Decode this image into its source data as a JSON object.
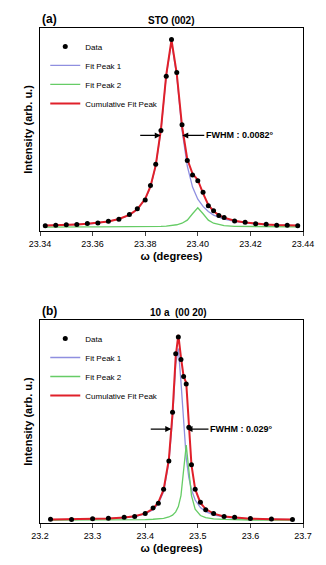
{
  "chart_data": [
    {
      "type": "scatter",
      "panel": "(a)",
      "peak_label": {
        "text": "STO (002)",
        "x": 23.39
      },
      "x_label": "ω (degrees)",
      "y_label": "Intensity (arb. u.)",
      "x": [
        23.342,
        23.346,
        23.35,
        23.354,
        23.358,
        23.362,
        23.366,
        23.37,
        23.374,
        23.377,
        23.38,
        23.382,
        23.384,
        23.386,
        23.388,
        23.39,
        23.392,
        23.394,
        23.396,
        23.398,
        23.4,
        23.402,
        23.404,
        23.406,
        23.408,
        23.41,
        23.414,
        23.418,
        23.422,
        23.426,
        23.43,
        23.434,
        23.438
      ],
      "series": [
        {
          "name": "Data",
          "color": "#000000",
          "marker": "circle",
          "values": [
            0.027,
            0.03,
            0.032,
            0.033,
            0.038,
            0.041,
            0.05,
            0.06,
            0.085,
            0.115,
            0.16,
            0.235,
            0.345,
            0.52,
            0.8,
            0.99,
            0.82,
            0.55,
            0.365,
            0.29,
            0.26,
            0.2,
            0.13,
            0.105,
            0.08,
            0.07,
            0.052,
            0.045,
            0.037,
            0.035,
            0.03,
            0.03,
            0.027
          ]
        },
        {
          "name": "Fit Peak 1",
          "color": "#8f8fe0",
          "line_style": "solid",
          "values": [
            0.027,
            0.029,
            0.031,
            0.033,
            0.036,
            0.041,
            0.049,
            0.061,
            0.082,
            0.111,
            0.164,
            0.227,
            0.336,
            0.523,
            0.802,
            0.98,
            0.802,
            0.523,
            0.336,
            0.227,
            0.164,
            0.127,
            0.101,
            0.082,
            0.07,
            0.061,
            0.049,
            0.041,
            0.036,
            0.033,
            0.031,
            0.029,
            0.027
          ]
        },
        {
          "name": "Fit Peak 2",
          "color": "#66cc66",
          "line_style": "solid",
          "values": [
            0.02,
            0.021,
            0.021,
            0.021,
            0.021,
            0.021,
            0.021,
            0.021,
            0.021,
            0.022,
            0.022,
            0.023,
            0.023,
            0.024,
            0.025,
            0.028,
            0.032,
            0.04,
            0.056,
            0.089,
            0.12,
            0.089,
            0.056,
            0.04,
            0.032,
            0.028,
            0.024,
            0.023,
            0.022,
            0.021,
            0.021,
            0.021,
            0.021
          ]
        },
        {
          "name": "Cumulative Fit Peak",
          "color": "#e0202a",
          "line_style": "solid",
          "values": [
            0.028,
            0.029,
            0.031,
            0.034,
            0.037,
            0.042,
            0.049,
            0.062,
            0.083,
            0.112,
            0.166,
            0.23,
            0.339,
            0.527,
            0.808,
            0.988,
            0.814,
            0.543,
            0.372,
            0.296,
            0.264,
            0.194,
            0.135,
            0.102,
            0.082,
            0.069,
            0.053,
            0.044,
            0.038,
            0.034,
            0.031,
            0.029,
            0.028
          ]
        }
      ],
      "xlim": [
        23.34,
        23.44
      ],
      "ylim": [
        0,
        1.05
      ],
      "xticks": [
        23.34,
        23.36,
        23.38,
        {
          "value": 23.4,
          "label": "23.40"
        },
        23.42,
        23.44
      ],
      "grid": false,
      "legend": "upper left",
      "tick_labels": "x",
      "fwhm": {
        "label": "FWHM : 0.0082°",
        "left": 23.3859,
        "right": 23.3941,
        "y": 0.494
      }
    },
    {
      "type": "scatter",
      "panel": "(b)",
      "peak_label": {
        "text": "10 a  (00 20)",
        "x": 23.463
      },
      "x_label": "ω (degrees)",
      "y_label": "Intensity (arb. u.)",
      "x": [
        23.22,
        23.26,
        23.3,
        23.33,
        23.36,
        23.38,
        23.4,
        23.415,
        23.425,
        23.435,
        23.445,
        23.452,
        23.458,
        23.463,
        23.468,
        23.473,
        23.478,
        23.483,
        23.488,
        23.495,
        23.505,
        23.515,
        23.53,
        23.55,
        23.57,
        23.6,
        23.64,
        23.68
      ],
      "series": [
        {
          "name": "Data",
          "color": "#000000",
          "marker": "circle",
          "values": [
            0.02,
            0.018,
            0.022,
            0.025,
            0.03,
            0.035,
            0.05,
            0.08,
            0.105,
            0.18,
            0.33,
            0.59,
            0.9,
            0.99,
            0.87,
            0.78,
            0.74,
            0.51,
            0.31,
            0.18,
            0.11,
            0.07,
            0.05,
            0.034,
            0.03,
            0.024,
            0.021,
            0.019
          ]
        },
        {
          "name": "Fit Peak 1",
          "color": "#8f8fe0",
          "line_style": "solid",
          "values": [
            0.017,
            0.018,
            0.02,
            0.023,
            0.028,
            0.034,
            0.048,
            0.071,
            0.103,
            0.167,
            0.322,
            0.558,
            0.843,
            0.929,
            0.751,
            0.515,
            0.346,
            0.242,
            0.177,
            0.122,
            0.082,
            0.06,
            0.043,
            0.032,
            0.026,
            0.022,
            0.019,
            0.018
          ]
        },
        {
          "name": "Fit Peak 2",
          "color": "#66cc66",
          "line_style": "solid",
          "values": [
            0.015,
            0.015,
            0.016,
            0.016,
            0.016,
            0.017,
            0.018,
            0.02,
            0.022,
            0.025,
            0.032,
            0.042,
            0.059,
            0.087,
            0.146,
            0.28,
            0.415,
            0.28,
            0.146,
            0.073,
            0.04,
            0.029,
            0.022,
            0.019,
            0.017,
            0.016,
            0.016,
            0.016
          ]
        },
        {
          "name": "Cumulative Fit Peak",
          "color": "#e0202a",
          "line_style": "solid",
          "values": [
            0.018,
            0.019,
            0.021,
            0.024,
            0.029,
            0.036,
            0.051,
            0.076,
            0.11,
            0.177,
            0.339,
            0.585,
            0.887,
            1.001,
            0.882,
            0.78,
            0.746,
            0.507,
            0.308,
            0.18,
            0.107,
            0.074,
            0.05,
            0.035,
            0.029,
            0.023,
            0.02,
            0.018
          ]
        }
      ],
      "xlim": [
        23.2,
        23.7
      ],
      "ylim": [
        0,
        1.08
      ],
      "xticks": [
        23.2,
        23.3,
        23.4,
        23.5,
        23.6,
        23.7
      ],
      "grid": false,
      "legend": "upper left",
      "tick_labels": "x",
      "fwhm": {
        "label": "FWHM : 0.029°",
        "left": 23.4495,
        "right": 23.4785,
        "y": 0.5
      }
    }
  ]
}
